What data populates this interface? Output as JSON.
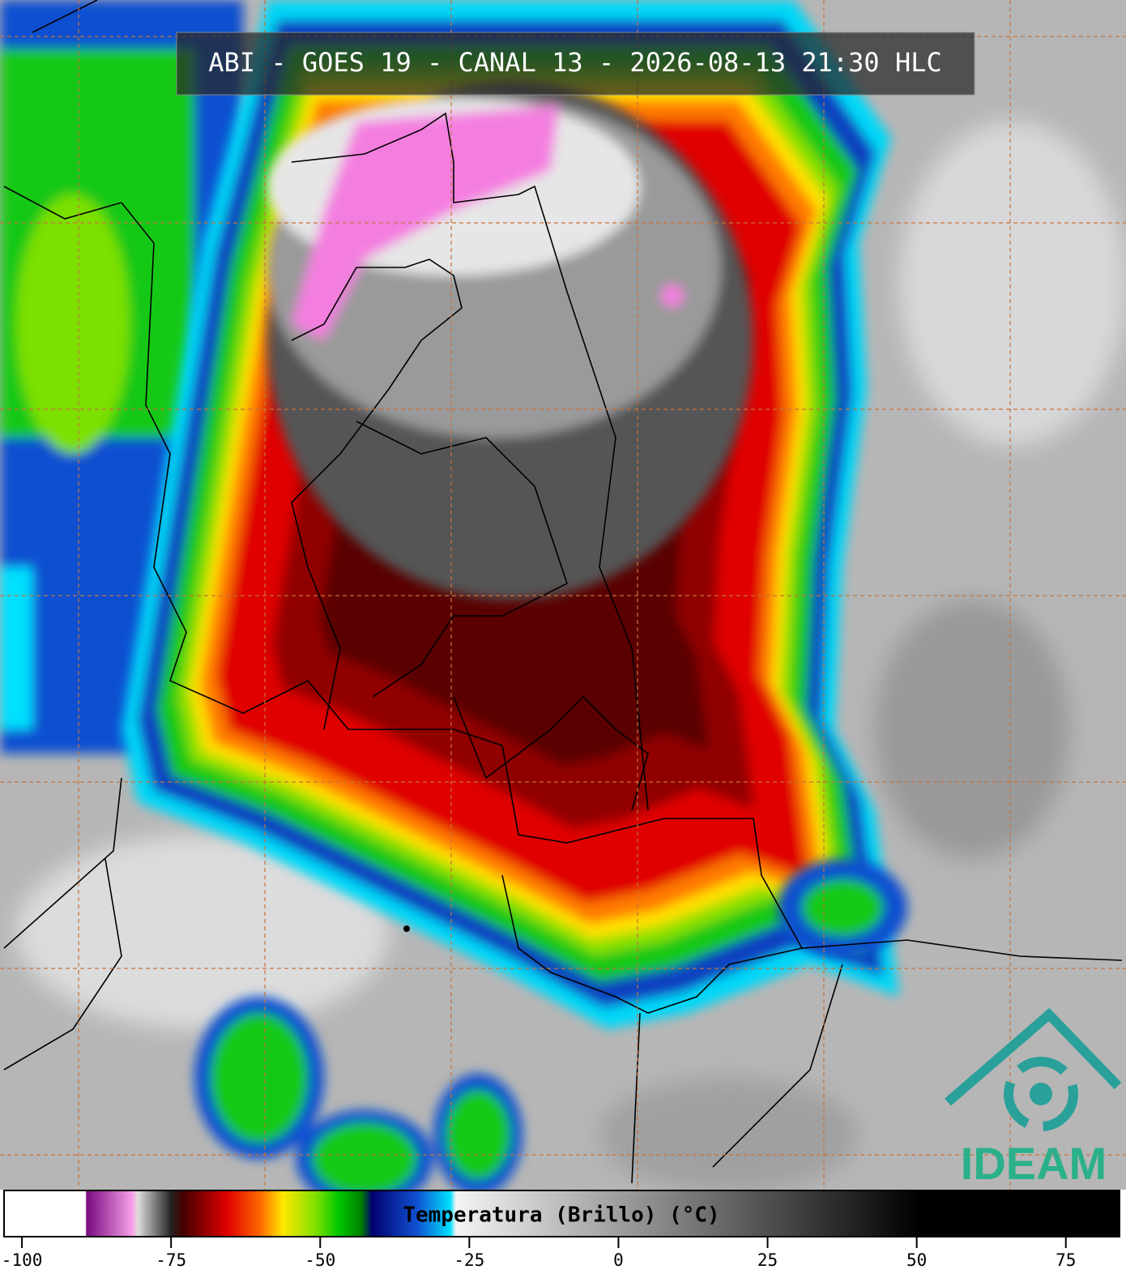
{
  "header": {
    "title": "ABI - GOES 19 - CANAL 13 - 2026-08-13 21:30 HLC"
  },
  "colorbar": {
    "label": "Temperatura (Brillo) (°C)",
    "range": [
      -103,
      84
    ],
    "ticks": [
      -100,
      -75,
      -50,
      -25,
      0,
      25,
      50,
      75
    ]
  },
  "logo": {
    "text": "IDEAM"
  }
}
